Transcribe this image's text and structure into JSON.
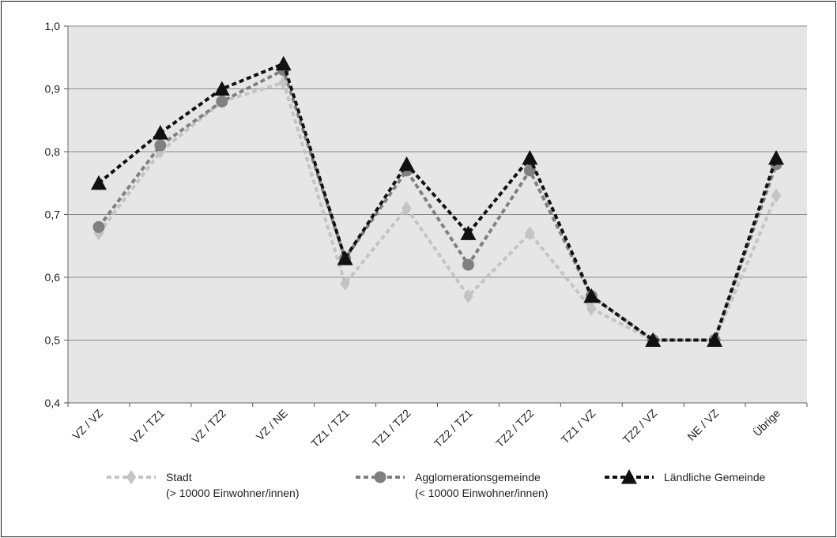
{
  "chart_data": {
    "type": "line",
    "title": "",
    "xlabel": "",
    "ylabel": "",
    "categories": [
      "VZ / VZ",
      "VZ / TZ1",
      "VZ / TZ2",
      "VZ / NE",
      "TZ1 / TZ1",
      "TZ1 / TZ2",
      "TZ2 / TZ1",
      "TZ2 / TZ2",
      "TZ1 / VZ",
      "TZ2 / VZ",
      "NE / VZ",
      "Übrige"
    ],
    "ylim": [
      0.4,
      1.0
    ],
    "yticks": [
      "0,4",
      "0,5",
      "0,6",
      "0,7",
      "0,8",
      "0,9",
      "1,0"
    ],
    "grid": true,
    "legend_position": "bottom",
    "series": [
      {
        "name": "Stadt",
        "name_line2": "(> 10000 Einwohner/innen)",
        "color": "#c4c4c4",
        "marker": "diamond",
        "values": [
          0.67,
          0.8,
          0.88,
          0.91,
          0.59,
          0.71,
          0.57,
          0.67,
          0.55,
          0.5,
          0.5,
          0.73
        ]
      },
      {
        "name": "Agglomerationsgemeinde",
        "name_line2": "(< 10000 Einwohner/innen)",
        "color": "#808080",
        "marker": "circle",
        "values": [
          0.68,
          0.81,
          0.88,
          0.93,
          0.63,
          0.77,
          0.62,
          0.77,
          0.57,
          0.5,
          0.5,
          0.78
        ]
      },
      {
        "name": "Ländliche Gemeinde",
        "name_line2": "",
        "color": "#111111",
        "marker": "triangle",
        "values": [
          0.75,
          0.83,
          0.9,
          0.94,
          0.63,
          0.78,
          0.67,
          0.79,
          0.57,
          0.5,
          0.5,
          0.79
        ]
      }
    ]
  }
}
